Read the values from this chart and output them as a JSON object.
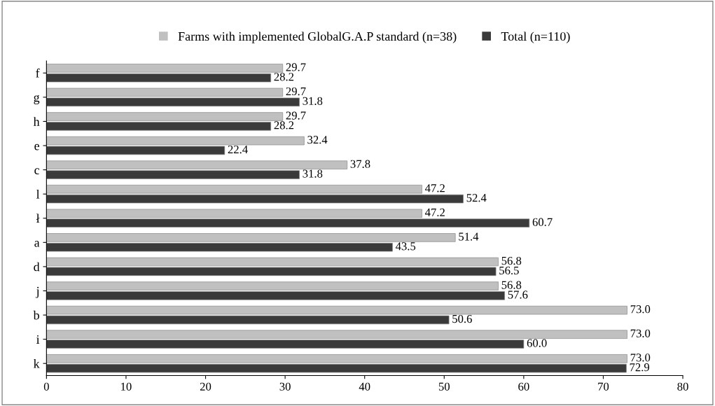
{
  "chart_data": {
    "type": "bar",
    "orientation": "horizontal",
    "categories": [
      "f",
      "g",
      "h",
      "e",
      "c",
      "l",
      "ł",
      "a",
      "d",
      "j",
      "b",
      "i",
      "k"
    ],
    "series": [
      {
        "name": "Farms with implemented GlobalG.A.P standard (n=38)",
        "color": "#c0c0c0",
        "values": [
          29.7,
          29.7,
          29.7,
          32.4,
          37.8,
          47.2,
          47.2,
          51.4,
          56.8,
          56.8,
          73.0,
          73.0,
          73.0
        ],
        "value_labels": [
          "29.7",
          "29.7",
          "29.7",
          "32.4",
          "37.8",
          "47.2",
          "47.2",
          "51.4",
          "56.8",
          "56.8",
          "73.0",
          "73.0",
          "73.0"
        ]
      },
      {
        "name": "Total (n=110)",
        "color": "#3a3a3a",
        "values": [
          28.2,
          31.8,
          28.2,
          22.4,
          31.8,
          52.4,
          60.7,
          43.5,
          56.5,
          57.6,
          50.6,
          60.0,
          72.9
        ],
        "value_labels": [
          "28.2",
          "31.8",
          "28.2",
          "22.4",
          "31.8",
          "52.4",
          "60.7",
          "43.5",
          "56.5",
          "57.6",
          "50.6",
          "60.0",
          "72.9"
        ]
      }
    ],
    "xlim": [
      0,
      80
    ],
    "xticks": [
      0,
      10,
      20,
      30,
      40,
      50,
      60,
      70,
      80
    ],
    "grid": false,
    "legend": "top"
  }
}
